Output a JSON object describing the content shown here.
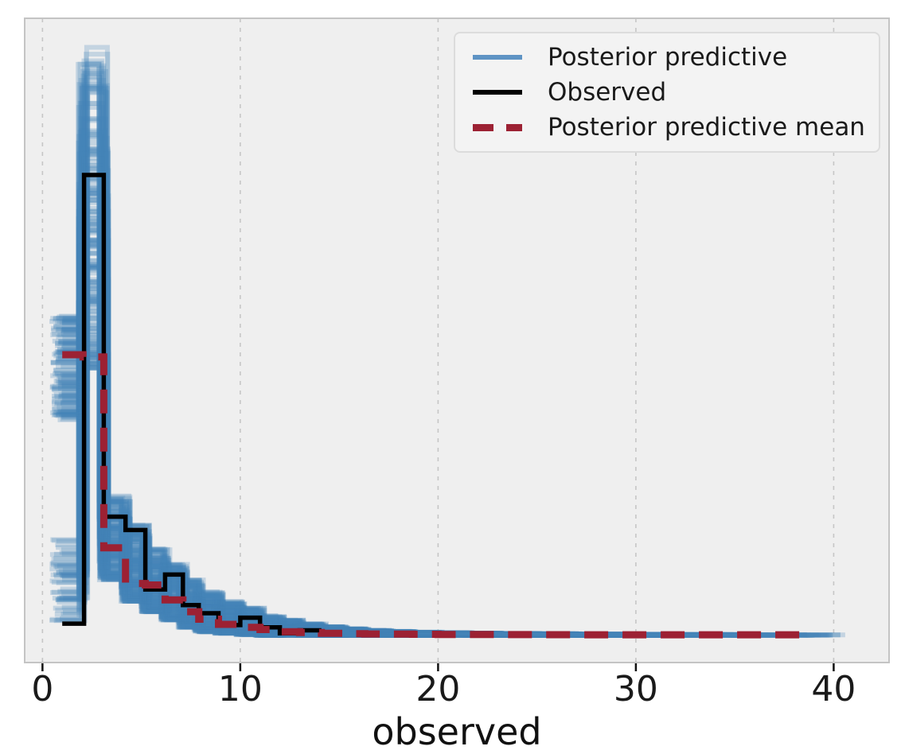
{
  "chart_data": {
    "type": "step-histogram-ensemble",
    "title": "",
    "xlabel": "observed",
    "ylabel": "",
    "xlim": [
      -0.9,
      42.8
    ],
    "ylim": [
      -0.0364,
      0.831
    ],
    "x_ticks": [
      0,
      10,
      20,
      30,
      40
    ],
    "y_axis_visible": false,
    "grid": "vertical-dashed",
    "background": "#efefef",
    "figure_background": "#ffffff",
    "grid_color": "#c6c6c6",
    "spine_color": "#c4c4c4",
    "text_color": "#1a1a1a",
    "legend": [
      {
        "label": "Posterior predictive",
        "color": "#5e93c4",
        "style": "solid",
        "thickness": 6
      },
      {
        "label": "Observed",
        "color": "#000000",
        "style": "solid",
        "thickness": 6
      },
      {
        "label": "Posterior predictive mean",
        "color": "#9c2133",
        "style": "dashed",
        "thickness": 9
      }
    ],
    "observed": {
      "name": "Observed",
      "color": "#000000",
      "width": 5.5,
      "edges": [
        1.0,
        2.1,
        3.1,
        4.2,
        5.2,
        6.2,
        7.1,
        7.9,
        8.9,
        10.0,
        11.0,
        12.0,
        13.0,
        14.1
      ],
      "densities": [
        0.016,
        0.62,
        0.16,
        0.142,
        0.062,
        0.082,
        0.041,
        0.03,
        0.014,
        0.024,
        0.011,
        0.003,
        0.007
      ]
    },
    "posterior_predictive_mean": {
      "name": "Posterior predictive mean",
      "color": "#9c2133",
      "width": 9,
      "dash": [
        30,
        18
      ],
      "edges": [
        1.0,
        2.05,
        3.1,
        4.2,
        5.2,
        6.2,
        7.1,
        7.9,
        8.9,
        10.0,
        11.0,
        12.0,
        13.0,
        14.1,
        15.2,
        16.3,
        17.5,
        18.7,
        20.0,
        21.5,
        23.0,
        25.0,
        27.0,
        29.5,
        32.0,
        35.0,
        38.7
      ],
      "densities": [
        0.378,
        0.375,
        0.118,
        0.07,
        0.068,
        0.048,
        0.032,
        0.022,
        0.015,
        0.011,
        0.008,
        0.005,
        0.004,
        0.003,
        0.0025,
        0.002,
        0.0018,
        0.0016,
        0.0014,
        0.0013,
        0.0012,
        0.0011,
        0.001,
        0.001,
        0.001,
        0.001
      ]
    },
    "posterior_predictive": {
      "name": "Posterior predictive",
      "color": "#4583b6",
      "opacity": 0.25,
      "width": 6,
      "n_samples": 200,
      "seed": 7,
      "edges": [
        1.0,
        2.05,
        3.1,
        4.2,
        5.2,
        6.2,
        7.1,
        7.9,
        8.9,
        10.0,
        11.0,
        12.0,
        13.0,
        14.1,
        15.2,
        16.3,
        17.5,
        18.7,
        20.0,
        21.5,
        23.0,
        25.0,
        27.0,
        29.5,
        32.0,
        35.0,
        38.7,
        41.5
      ],
      "bin_low": [
        0.29,
        0.36,
        0.075,
        0.046,
        0.032,
        0.021,
        0.011,
        0.005,
        0.003,
        0.001,
        0,
        0,
        0,
        0,
        0,
        0,
        0,
        0,
        0,
        0,
        0,
        0,
        0,
        0,
        0,
        0,
        0
      ],
      "bin_high": [
        0.43,
        0.8,
        0.19,
        0.15,
        0.118,
        0.096,
        0.075,
        0.059,
        0.046,
        0.037,
        0.027,
        0.021,
        0.016,
        0.012,
        0.009,
        0.007,
        0.0055,
        0.0045,
        0.0038,
        0.0032,
        0.0028,
        0.0024,
        0.002,
        0.0017,
        0.0014,
        0.0012,
        0.001
      ],
      "bin_skew": [
        1.0,
        1.35,
        1.5,
        1.5,
        1.5,
        1.5,
        1.5,
        1.5,
        1.5,
        1.5,
        1.5,
        1.5,
        1.5,
        1.3,
        1.2,
        1.2,
        1.1,
        1.1,
        1.0,
        1.0,
        1.0,
        1.0,
        1.0,
        1.0,
        1.0,
        1.0,
        1.0
      ],
      "first_bin_low_cluster": {
        "prob": 0.3,
        "low": 0.02,
        "high": 0.13
      },
      "start_x_min": 0.35,
      "start_x_max": 1.05,
      "end_x_min": 16,
      "end_x_max": 41,
      "edge_jitter": 0.5
    }
  }
}
